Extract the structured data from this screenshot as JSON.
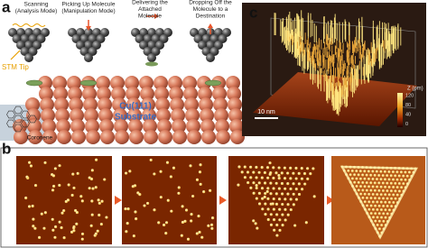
{
  "panel_labels": {
    "a": "a",
    "b": "b",
    "c": "c"
  },
  "panel_a": {
    "steps": [
      {
        "lines": [
          "Scanning",
          "(Analysis Mode)"
        ]
      },
      {
        "lines": [
          "Picking Up Molecule",
          "(Manipulation Mode)"
        ]
      },
      {
        "lines": [
          "Delivering the",
          "Attached",
          "Molecule"
        ]
      },
      {
        "lines": [
          "Dropping Off the",
          "Molecule to a",
          "Destination"
        ]
      }
    ],
    "stm_tip": "STM Tip",
    "substrate_lines": [
      "Cu(111)",
      "Substrate"
    ],
    "coronene": "Coronene"
  },
  "panel_c": {
    "scale_bar": "10 nm",
    "z_axis_label": "Z (pm)",
    "z_ticks": [
      "120",
      "80",
      "40",
      "0"
    ]
  }
}
